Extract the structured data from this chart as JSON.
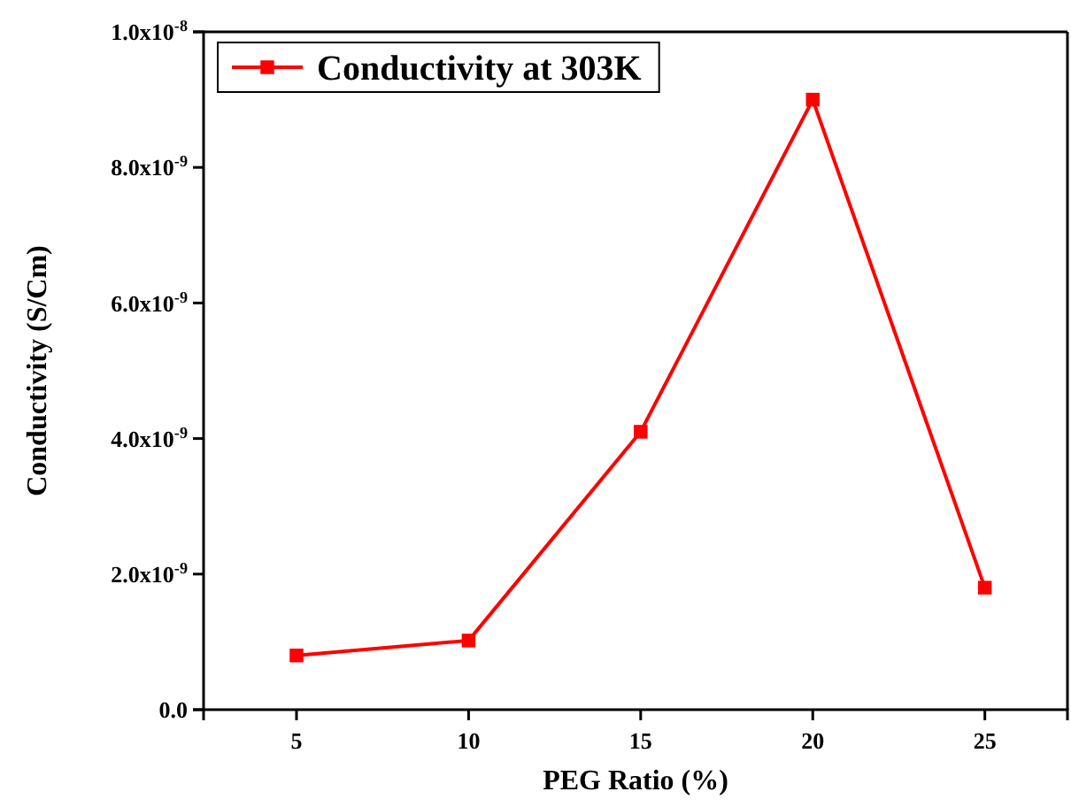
{
  "chart_data": {
    "type": "line",
    "xlabel": "PEG Ratio (%)",
    "ylabel": "Conductivity (S/Cm)",
    "x": [
      5,
      10,
      15,
      20,
      25
    ],
    "series": [
      {
        "name": "Conductivity at 303K",
        "color": "#ff0000",
        "values": [
          8e-10,
          1.02e-09,
          4.1e-09,
          9e-09,
          1.8e-09
        ]
      }
    ],
    "xlim": [
      2.3,
      27.4
    ],
    "xticks": [
      5,
      10,
      15,
      20,
      25
    ],
    "ylim": [
      0,
      1e-08
    ],
    "yticks": [
      {
        "value": 0,
        "label": "0.0"
      },
      {
        "value": 2e-09,
        "label": "2.0x10$^{-9}$"
      },
      {
        "value": 4e-09,
        "label": "4.0x10$^{-9}$"
      },
      {
        "value": 6e-09,
        "label": "6.0x10$^{-9}$"
      },
      {
        "value": 8e-09,
        "label": "8.0x10$^{-9}$"
      },
      {
        "value": 1e-08,
        "label": "1.0x10$^{-8}$"
      }
    ],
    "marker": "square",
    "line_style": "solid",
    "legend": "top left",
    "grid": false
  }
}
